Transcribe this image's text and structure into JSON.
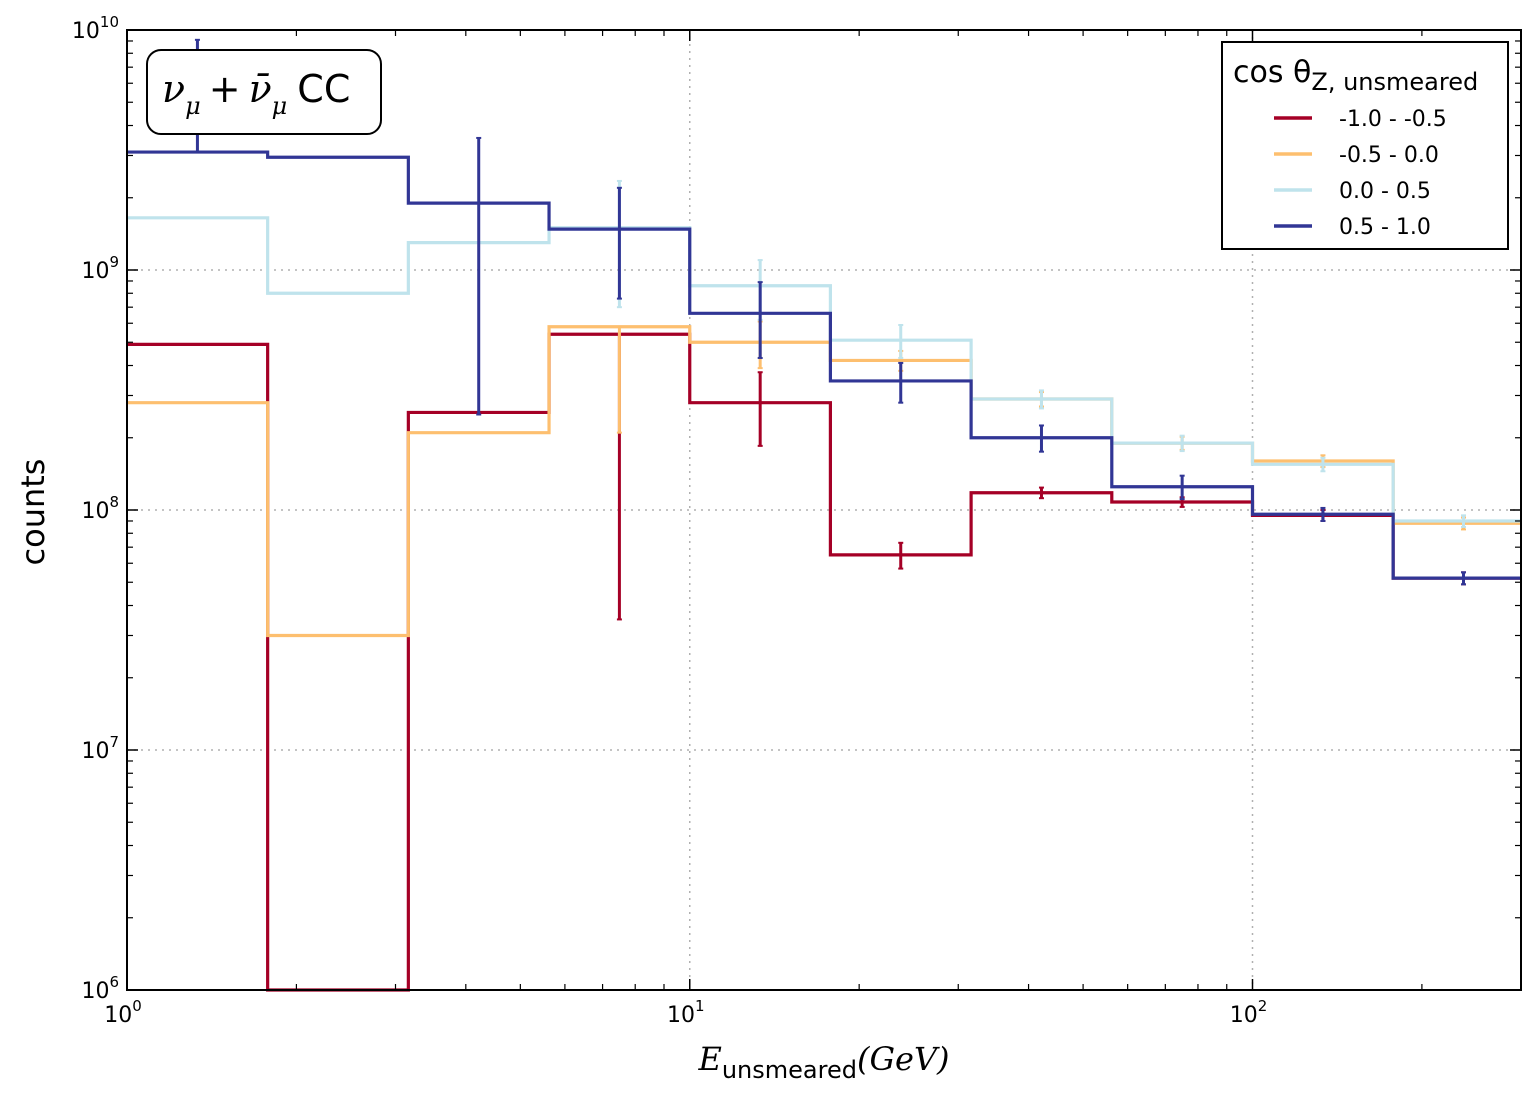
{
  "chart_data": {
    "type": "line",
    "subtype": "step-histogram-with-errorbars",
    "title": "",
    "xlabel": {
      "base": "E",
      "sub": "unsmeared",
      "tail": "(GeV)"
    },
    "ylabel": "counts",
    "x_scale": "log",
    "y_scale": "log",
    "xlim": [
      1,
      300
    ],
    "ylim": [
      1000000,
      10000000000
    ],
    "x_ticks": [
      {
        "value": 1,
        "base": "10",
        "exp": "0"
      },
      {
        "value": 10,
        "base": "10",
        "exp": "1"
      },
      {
        "value": 100,
        "base": "10",
        "exp": "2"
      }
    ],
    "y_ticks": [
      {
        "value": 1000000,
        "base": "10",
        "exp": "6"
      },
      {
        "value": 10000000,
        "base": "10",
        "exp": "7"
      },
      {
        "value": 100000000,
        "base": "10",
        "exp": "8"
      },
      {
        "value": 1000000000,
        "base": "10",
        "exp": "9"
      },
      {
        "value": 10000000000,
        "base": "10",
        "exp": "10"
      }
    ],
    "grid": true,
    "annotation": {
      "nu": "ν",
      "mu": "μ",
      "plus": "+",
      "nubar": "ν̄",
      "tail": "CC"
    },
    "legend": {
      "position": "top-right",
      "title": {
        "main": "cos θ",
        "sub": "Z, unsmeared"
      }
    },
    "bin_edges": [
      1.0,
      1.778,
      3.162,
      5.623,
      10.0,
      17.78,
      31.62,
      56.23,
      100.0,
      177.8,
      316.2
    ],
    "bin_centers": [
      1.334,
      2.371,
      4.217,
      7.499,
      13.34,
      23.71,
      42.17,
      74.99,
      133.4,
      237.1
    ],
    "series": [
      {
        "name": "-1.0 - -0.5",
        "color": "#a50026",
        "values": [
          490000000,
          0,
          255000000,
          540000000,
          280000000,
          65000000,
          118000000,
          108000000,
          95000000,
          52000000
        ],
        "errors_low": [
          0,
          0,
          0,
          505000000,
          95000000,
          8000000,
          6000000,
          5000000,
          5000000,
          3000000
        ],
        "errors_high": [
          0,
          0,
          0,
          0,
          95000000,
          8000000,
          6000000,
          5000000,
          5000000,
          3000000
        ]
      },
      {
        "name": "-0.5 - 0.0",
        "color": "#fdbf6f",
        "values": [
          280000000,
          30000000,
          210000000,
          580000000,
          500000000,
          420000000,
          290000000,
          190000000,
          160000000,
          88000000
        ],
        "errors_low": [
          0,
          0,
          0,
          370000000,
          110000000,
          40000000,
          20000000,
          12000000,
          9000000,
          5000000
        ],
        "errors_high": [
          0,
          0,
          0,
          0,
          110000000,
          40000000,
          20000000,
          12000000,
          9000000,
          5000000
        ]
      },
      {
        "name": "0.0 - 0.5",
        "color": "#bfe3ec",
        "values": [
          1650000000,
          800000000,
          1300000000,
          1500000000,
          860000000,
          510000000,
          290000000,
          190000000,
          155000000,
          90000000
        ],
        "errors_low": [
          0,
          0,
          0,
          800000000,
          240000000,
          80000000,
          25000000,
          14000000,
          10000000,
          5000000
        ],
        "errors_high": [
          0,
          0,
          0,
          850000000,
          240000000,
          80000000,
          25000000,
          14000000,
          10000000,
          5000000
        ]
      },
      {
        "name": "0.5 - 1.0",
        "color": "#313695",
        "values": [
          3100000000,
          2950000000,
          1900000000,
          1480000000,
          660000000,
          345000000,
          200000000,
          125000000,
          96000000,
          52000000
        ],
        "errors_low": [
          0,
          0,
          1650000000,
          720000000,
          230000000,
          65000000,
          25000000,
          14000000,
          6000000,
          3000000
        ],
        "errors_high": [
          6000000000,
          0,
          1650000000,
          720000000,
          230000000,
          65000000,
          25000000,
          14000000,
          6000000,
          3000000
        ]
      }
    ]
  }
}
